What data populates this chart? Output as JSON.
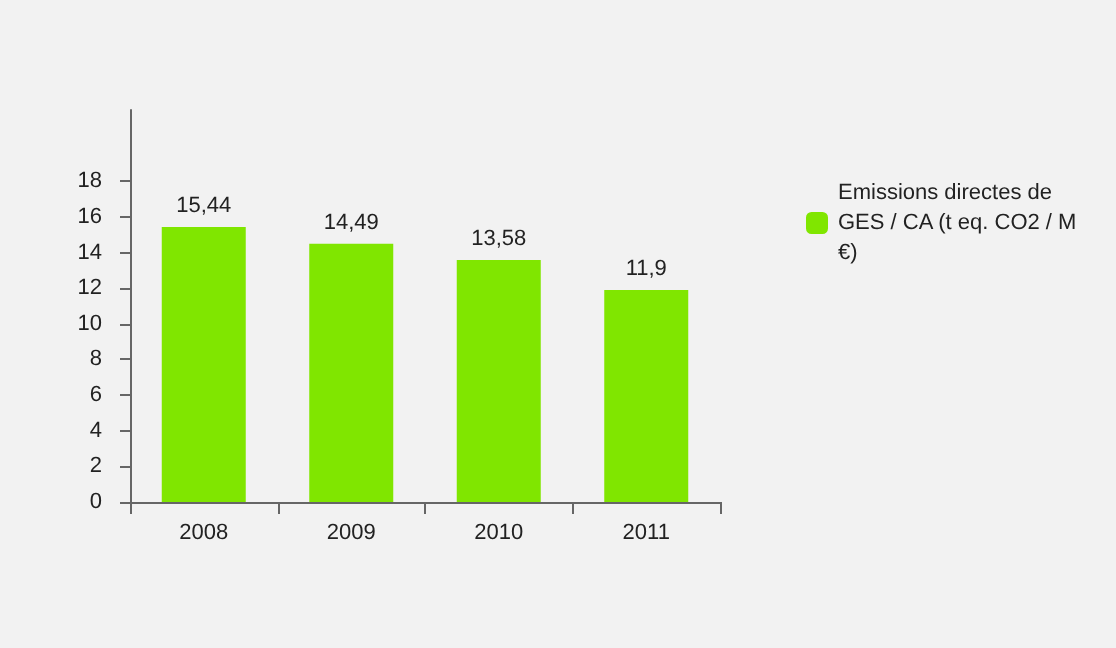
{
  "chart_data": {
    "type": "bar",
    "categories": [
      "2008",
      "2009",
      "2010",
      "2011"
    ],
    "series": [
      {
        "name": "Emissions directes de GES / CA (t eq. CO2 / M€)",
        "color": "#80e600",
        "values": [
          15.44,
          14.49,
          13.58,
          11.9
        ],
        "value_labels": [
          "15,44",
          "14,49",
          "13,58",
          "11,9"
        ]
      }
    ],
    "ylim": [
      0,
      22
    ],
    "yticks": [
      0,
      2,
      4,
      6,
      8,
      10,
      12,
      14,
      16,
      18
    ],
    "grid": false,
    "legend": "top right"
  }
}
